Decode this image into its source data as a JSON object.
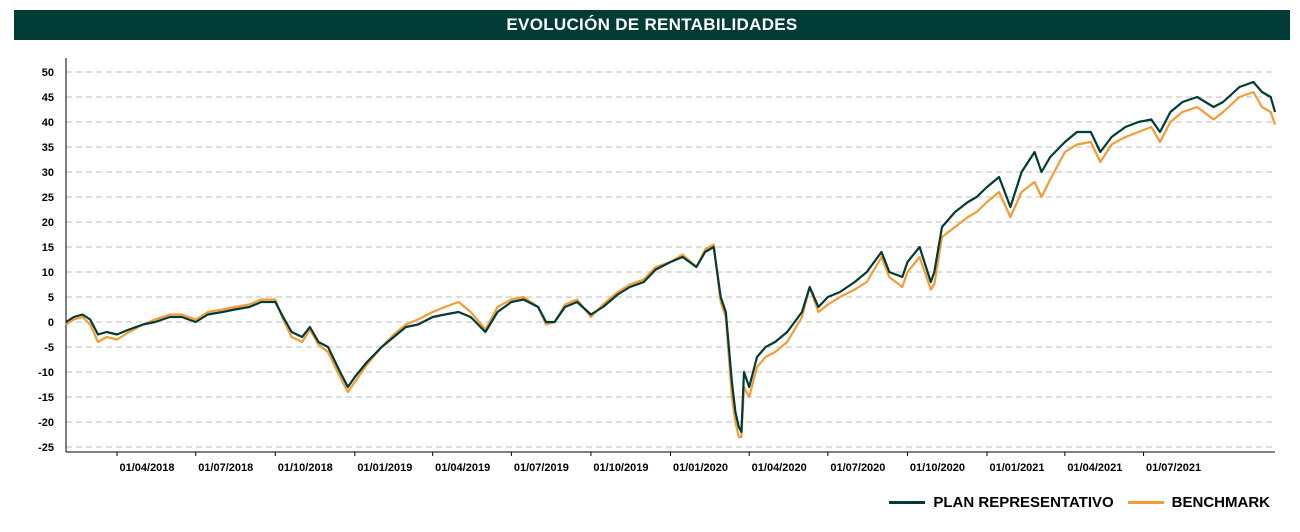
{
  "header": {
    "title": "EVOLUCIÓN DE RENTABILIDADES"
  },
  "chart_data": {
    "type": "line",
    "title": "EVOLUCIÓN DE RENTABILIDADES",
    "xlabel": "",
    "ylabel": "",
    "ylim": [
      -26,
      52
    ],
    "xlim": [
      "2018-02-01",
      "2021-11-30"
    ],
    "yticks": [
      50,
      45,
      40,
      35,
      30,
      25,
      20,
      15,
      10,
      5,
      0,
      -5,
      -10,
      -15,
      -20,
      -25
    ],
    "xticks": [
      "01/04/2018",
      "01/07/2018",
      "01/10/2018",
      "01/01/2019",
      "01/04/2019",
      "01/07/2019",
      "01/10/2019",
      "01/01/2020",
      "01/04/2020",
      "01/07/2020",
      "01/10/2020",
      "01/01/2021",
      "01/04/2021",
      "01/07/2021"
    ],
    "grid": true,
    "legend_position": "bottom-right",
    "series": [
      {
        "name": "PLAN REPRESENTATIVO",
        "color": "#003b36",
        "points": [
          [
            "2018-02-01",
            0
          ],
          [
            "2018-02-10",
            1
          ],
          [
            "2018-02-20",
            1.5
          ],
          [
            "2018-03-01",
            0.5
          ],
          [
            "2018-03-10",
            -2.5
          ],
          [
            "2018-03-20",
            -2
          ],
          [
            "2018-04-01",
            -2.5
          ],
          [
            "2018-04-15",
            -1.5
          ],
          [
            "2018-05-01",
            -0.5
          ],
          [
            "2018-05-15",
            0
          ],
          [
            "2018-06-01",
            1
          ],
          [
            "2018-06-15",
            1
          ],
          [
            "2018-07-01",
            0
          ],
          [
            "2018-07-15",
            1.5
          ],
          [
            "2018-08-01",
            2
          ],
          [
            "2018-08-15",
            2.5
          ],
          [
            "2018-09-01",
            3
          ],
          [
            "2018-09-15",
            4
          ],
          [
            "2018-10-01",
            4
          ],
          [
            "2018-10-10",
            1
          ],
          [
            "2018-10-20",
            -2
          ],
          [
            "2018-11-01",
            -3
          ],
          [
            "2018-11-10",
            -1
          ],
          [
            "2018-11-20",
            -4
          ],
          [
            "2018-12-01",
            -5
          ],
          [
            "2018-12-15",
            -10
          ],
          [
            "2018-12-24",
            -13
          ],
          [
            "2019-01-01",
            -11
          ],
          [
            "2019-01-15",
            -8
          ],
          [
            "2019-02-01",
            -5
          ],
          [
            "2019-02-15",
            -3
          ],
          [
            "2019-03-01",
            -1
          ],
          [
            "2019-03-15",
            -0.5
          ],
          [
            "2019-04-01",
            1
          ],
          [
            "2019-04-15",
            1.5
          ],
          [
            "2019-05-01",
            2
          ],
          [
            "2019-05-15",
            1
          ],
          [
            "2019-06-01",
            -2
          ],
          [
            "2019-06-15",
            2
          ],
          [
            "2019-07-01",
            4
          ],
          [
            "2019-07-15",
            4.5
          ],
          [
            "2019-08-01",
            3
          ],
          [
            "2019-08-10",
            0
          ],
          [
            "2019-08-20",
            0
          ],
          [
            "2019-09-01",
            3
          ],
          [
            "2019-09-15",
            4
          ],
          [
            "2019-10-01",
            1.5
          ],
          [
            "2019-10-15",
            3
          ],
          [
            "2019-11-01",
            5.5
          ],
          [
            "2019-11-15",
            7
          ],
          [
            "2019-12-01",
            8
          ],
          [
            "2019-12-15",
            10.5
          ],
          [
            "2020-01-01",
            12
          ],
          [
            "2020-01-15",
            13
          ],
          [
            "2020-01-31",
            11
          ],
          [
            "2020-02-10",
            14
          ],
          [
            "2020-02-20",
            15
          ],
          [
            "2020-02-28",
            5
          ],
          [
            "2020-03-05",
            2
          ],
          [
            "2020-03-12",
            -12
          ],
          [
            "2020-03-16",
            -18
          ],
          [
            "2020-03-20",
            -21
          ],
          [
            "2020-03-23",
            -22
          ],
          [
            "2020-03-26",
            -10
          ],
          [
            "2020-04-01",
            -13
          ],
          [
            "2020-04-10",
            -7
          ],
          [
            "2020-04-20",
            -5
          ],
          [
            "2020-05-01",
            -4
          ],
          [
            "2020-05-15",
            -2
          ],
          [
            "2020-06-01",
            2
          ],
          [
            "2020-06-10",
            7
          ],
          [
            "2020-06-20",
            3
          ],
          [
            "2020-07-01",
            5
          ],
          [
            "2020-07-15",
            6
          ],
          [
            "2020-08-01",
            8
          ],
          [
            "2020-08-15",
            10
          ],
          [
            "2020-09-01",
            14
          ],
          [
            "2020-09-10",
            10
          ],
          [
            "2020-09-25",
            9
          ],
          [
            "2020-10-01",
            12
          ],
          [
            "2020-10-15",
            15
          ],
          [
            "2020-10-28",
            8
          ],
          [
            "2020-11-01",
            10
          ],
          [
            "2020-11-10",
            19
          ],
          [
            "2020-11-25",
            22
          ],
          [
            "2020-12-10",
            24
          ],
          [
            "2020-12-20",
            25
          ],
          [
            "2021-01-01",
            27
          ],
          [
            "2021-01-15",
            29
          ],
          [
            "2021-01-28",
            23
          ],
          [
            "2021-02-10",
            30
          ],
          [
            "2021-02-25",
            34
          ],
          [
            "2021-03-05",
            30
          ],
          [
            "2021-03-15",
            33
          ],
          [
            "2021-04-01",
            36
          ],
          [
            "2021-04-15",
            38
          ],
          [
            "2021-05-01",
            38
          ],
          [
            "2021-05-12",
            34
          ],
          [
            "2021-05-25",
            37
          ],
          [
            "2021-06-10",
            39
          ],
          [
            "2021-06-25",
            40
          ],
          [
            "2021-07-10",
            40.5
          ],
          [
            "2021-07-20",
            38
          ],
          [
            "2021-08-01",
            42
          ],
          [
            "2021-08-15",
            44
          ],
          [
            "2021-09-01",
            45
          ],
          [
            "2021-09-20",
            43
          ],
          [
            "2021-10-01",
            44
          ],
          [
            "2021-10-20",
            47
          ],
          [
            "2021-11-05",
            48
          ],
          [
            "2021-11-15",
            46
          ],
          [
            "2021-11-25",
            45
          ],
          [
            "2021-11-30",
            42
          ]
        ]
      },
      {
        "name": "BENCHMARK",
        "color": "#f39c35",
        "points": [
          [
            "2018-02-01",
            -0.5
          ],
          [
            "2018-02-10",
            0.5
          ],
          [
            "2018-02-20",
            1
          ],
          [
            "2018-03-01",
            -0.5
          ],
          [
            "2018-03-10",
            -4
          ],
          [
            "2018-03-20",
            -3
          ],
          [
            "2018-04-01",
            -3.5
          ],
          [
            "2018-04-15",
            -2
          ],
          [
            "2018-05-01",
            -0.5
          ],
          [
            "2018-05-15",
            0.5
          ],
          [
            "2018-06-01",
            1.5
          ],
          [
            "2018-06-15",
            1.5
          ],
          [
            "2018-07-01",
            0.5
          ],
          [
            "2018-07-15",
            2
          ],
          [
            "2018-08-01",
            2.5
          ],
          [
            "2018-08-15",
            3
          ],
          [
            "2018-09-01",
            3.5
          ],
          [
            "2018-09-15",
            4.5
          ],
          [
            "2018-10-01",
            4.5
          ],
          [
            "2018-10-10",
            0.5
          ],
          [
            "2018-10-20",
            -3
          ],
          [
            "2018-11-01",
            -4
          ],
          [
            "2018-11-10",
            -1.5
          ],
          [
            "2018-11-20",
            -4.5
          ],
          [
            "2018-12-01",
            -6
          ],
          [
            "2018-12-15",
            -11
          ],
          [
            "2018-12-24",
            -14
          ],
          [
            "2019-01-01",
            -12
          ],
          [
            "2019-01-15",
            -8.5
          ],
          [
            "2019-02-01",
            -5
          ],
          [
            "2019-02-15",
            -2.5
          ],
          [
            "2019-03-01",
            -0.5
          ],
          [
            "2019-03-15",
            0.5
          ],
          [
            "2019-04-01",
            2
          ],
          [
            "2019-04-15",
            3
          ],
          [
            "2019-05-01",
            4
          ],
          [
            "2019-05-15",
            2
          ],
          [
            "2019-06-01",
            -1.5
          ],
          [
            "2019-06-15",
            3
          ],
          [
            "2019-07-01",
            4.5
          ],
          [
            "2019-07-15",
            5
          ],
          [
            "2019-08-01",
            3
          ],
          [
            "2019-08-10",
            -0.5
          ],
          [
            "2019-08-20",
            0
          ],
          [
            "2019-09-01",
            3.5
          ],
          [
            "2019-09-15",
            4.5
          ],
          [
            "2019-10-01",
            1
          ],
          [
            "2019-10-15",
            3.5
          ],
          [
            "2019-11-01",
            6
          ],
          [
            "2019-11-15",
            7.5
          ],
          [
            "2019-12-01",
            8.5
          ],
          [
            "2019-12-15",
            11
          ],
          [
            "2020-01-01",
            12
          ],
          [
            "2020-01-15",
            13.5
          ],
          [
            "2020-01-31",
            11
          ],
          [
            "2020-02-10",
            14.5
          ],
          [
            "2020-02-20",
            15.5
          ],
          [
            "2020-02-28",
            4
          ],
          [
            "2020-03-05",
            1
          ],
          [
            "2020-03-12",
            -15
          ],
          [
            "2020-03-16",
            -20
          ],
          [
            "2020-03-20",
            -23
          ],
          [
            "2020-03-23",
            -23
          ],
          [
            "2020-03-26",
            -13
          ],
          [
            "2020-04-01",
            -15
          ],
          [
            "2020-04-10",
            -9
          ],
          [
            "2020-04-20",
            -7
          ],
          [
            "2020-05-01",
            -6
          ],
          [
            "2020-05-15",
            -4
          ],
          [
            "2020-06-01",
            1
          ],
          [
            "2020-06-10",
            7
          ],
          [
            "2020-06-20",
            2
          ],
          [
            "2020-07-01",
            3.5
          ],
          [
            "2020-07-15",
            5
          ],
          [
            "2020-08-01",
            6.5
          ],
          [
            "2020-08-15",
            8
          ],
          [
            "2020-09-01",
            13
          ],
          [
            "2020-09-10",
            9
          ],
          [
            "2020-09-25",
            7
          ],
          [
            "2020-10-01",
            10
          ],
          [
            "2020-10-15",
            13
          ],
          [
            "2020-10-28",
            6.5
          ],
          [
            "2020-11-01",
            7.5
          ],
          [
            "2020-11-10",
            17
          ],
          [
            "2020-11-25",
            19
          ],
          [
            "2020-12-10",
            21
          ],
          [
            "2020-12-20",
            22
          ],
          [
            "2021-01-01",
            24
          ],
          [
            "2021-01-15",
            26
          ],
          [
            "2021-01-28",
            21
          ],
          [
            "2021-02-10",
            26
          ],
          [
            "2021-02-25",
            28
          ],
          [
            "2021-03-05",
            25
          ],
          [
            "2021-03-15",
            28.5
          ],
          [
            "2021-04-01",
            34
          ],
          [
            "2021-04-15",
            35.5
          ],
          [
            "2021-05-01",
            36
          ],
          [
            "2021-05-12",
            32
          ],
          [
            "2021-05-25",
            35.5
          ],
          [
            "2021-06-10",
            37
          ],
          [
            "2021-06-25",
            38
          ],
          [
            "2021-07-10",
            39
          ],
          [
            "2021-07-20",
            36
          ],
          [
            "2021-08-01",
            40
          ],
          [
            "2021-08-15",
            42
          ],
          [
            "2021-09-01",
            43
          ],
          [
            "2021-09-20",
            40.5
          ],
          [
            "2021-10-01",
            42
          ],
          [
            "2021-10-20",
            45
          ],
          [
            "2021-11-05",
            46
          ],
          [
            "2021-11-15",
            43
          ],
          [
            "2021-11-25",
            42
          ],
          [
            "2021-11-30",
            39.5
          ]
        ]
      }
    ]
  },
  "legend": {
    "items": [
      {
        "label": "PLAN REPRESENTATIVO",
        "color": "#003b36"
      },
      {
        "label": "BENCHMARK",
        "color": "#f39c35"
      }
    ]
  }
}
